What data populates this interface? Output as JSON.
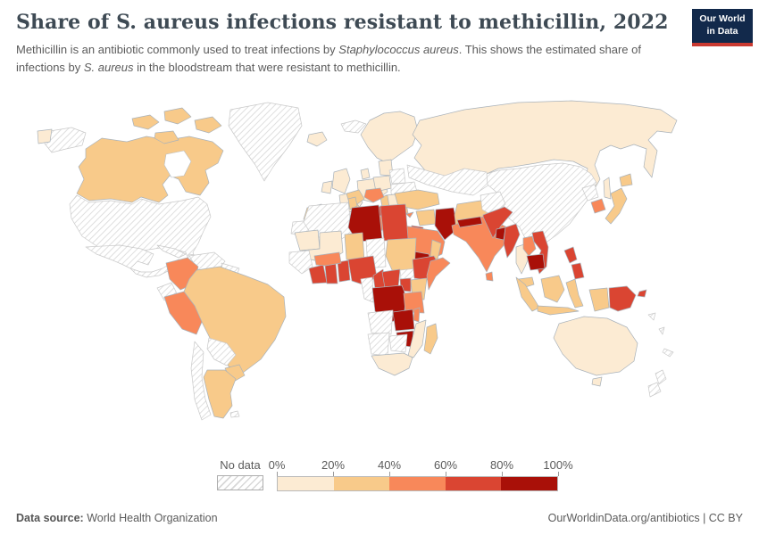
{
  "header": {
    "title": "Share of S. aureus infections resistant to methicillin, 2022",
    "subtitle_parts": [
      {
        "text": "Methicillin is an antibiotic commonly used to treat infections by ",
        "italic": false
      },
      {
        "text": "Staphylococcus aureus",
        "italic": true
      },
      {
        "text": ". This shows the estimated share of infections by ",
        "italic": false
      },
      {
        "text": "S. aureus",
        "italic": true
      },
      {
        "text": " in the bloodstream that were resistant to methicillin.",
        "italic": false
      }
    ]
  },
  "logo": {
    "line1": "Our World",
    "line2": "in Data",
    "bg_color": "#12294b",
    "accent_color": "#ca3a31"
  },
  "footer": {
    "datasource_label": "Data source:",
    "datasource_value": " World Health Organization",
    "attribution": "OurWorldinData.org/antibiotics | CC BY"
  },
  "chart_data": {
    "type": "choropleth-world-map",
    "title": "Share of S. aureus infections resistant to methicillin, 2022",
    "year": "2022",
    "unit": "%",
    "legend": {
      "position": "bottom",
      "no_data_label": "No data",
      "tick_labels": [
        "0%",
        "20%",
        "40%",
        "60%",
        "80%",
        "100%"
      ],
      "bucket_labels": [
        "0-20%",
        "20-40%",
        "40-60%",
        "60-80%",
        "80-100%"
      ],
      "bucket_colors": [
        "#fcebd3",
        "#f8ca8a",
        "#f8885a",
        "#da4532",
        "#a91008"
      ],
      "no_data_fill": "hatched"
    },
    "regions": {
      "greenland": "No data",
      "svalbard": "No data",
      "alaska": "No data",
      "usa": "No data",
      "mexico": "No data",
      "central-america": "No data",
      "cuba": "No data",
      "hispaniola": "No data",
      "venezuela": "No data",
      "guyanas": "No data",
      "ecuador": "No data",
      "bolivia": "No data",
      "chile": "No data",
      "falklands": "No data",
      "belarus": "No data",
      "ukraine": "No data",
      "kazakhstan-central-asia": "No data",
      "china-mongolia": "No data",
      "north-korea": "No data",
      "afghanistan": "No data",
      "western-sahara": "No data",
      "algeria": "No data",
      "senegal-guinea": "No data",
      "chad": "No data",
      "south-sudan": "No data",
      "gabon-congo": "No data",
      "angola": "No data",
      "namibia": "No data",
      "botswana": "No data",
      "new-zealand-north": "No data",
      "new-zealand-south": "No data",
      "solomon-islands": "No data",
      "vanuatu": "No data",
      "new-caledonia": "No data",
      "iceland": "0-20%",
      "chukotka": "0-20%",
      "russia": "0-20%",
      "sakhalin": "0-20%",
      "nordics": "0-20%",
      "united-kingdom": "0-20%",
      "ireland": "0-20%",
      "france": "0-20%",
      "iberia": "0-20%",
      "central-europe": "0-20%",
      "denmark": "0-20%",
      "poland": "0-20%",
      "baltics": "0-20%",
      "romania": "0-20%",
      "mauritania": "0-20%",
      "mali": "0-20%",
      "thailand": "0-20%",
      "australia": "0-20%",
      "tasmania": "0-20%",
      "south-africa": "0-20%",
      "mozambique": "0-20%",
      "canada": "20-40%",
      "arctic-1": "20-40%",
      "arctic-2": "20-40%",
      "arctic-3": "20-40%",
      "arctic-4": "20-40%",
      "brazil": "20-40%",
      "paraguay": "20-40%",
      "argentina": "20-40%",
      "italy": "20-40%",
      "sicily": "20-40%",
      "serbia": "20-40%",
      "bulgaria": "20-40%",
      "turkey": "20-40%",
      "syria": "20-40%",
      "iran": "20-40%",
      "oman": "20-40%",
      "morocco": "20-40%",
      "tunisia": "20-40%",
      "niger": "20-40%",
      "sudan": "20-40%",
      "kenya": "20-40%",
      "madagascar": "20-40%",
      "malaysia": "20-40%",
      "sumatra": "20-40%",
      "java": "20-40%",
      "borneo": "20-40%",
      "sulawesi": "20-40%",
      "papua-indonesia": "20-40%",
      "japan": "20-40%",
      "hokkaido": "20-40%",
      "colombia": "40-60%",
      "peru": "40-60%",
      "croatia": "40-60%",
      "greece": "40-60%",
      "cyprus": "40-60%",
      "saudi-arabia": "40-60%",
      "india": "40-60%",
      "sri-lanka": "40-60%",
      "laos": "40-60%",
      "south-korea": "40-60%",
      "burkina-faso": "40-60%",
      "somalia": "40-60%",
      "tanzania": "40-60%",
      "malawi": "40-60%",
      "albania": "60-80%",
      "jordan-levant": "60-80%",
      "pakistan": "60-80%",
      "myanmar": "60-80%",
      "vietnam": "60-80%",
      "philippines-north": "60-80%",
      "philippines-south": "60-80%",
      "papua-new-guinea": "60-80%",
      "new-britain": "60-80%",
      "cote-divoire": "60-80%",
      "ghana": "60-80%",
      "togo-benin": "60-80%",
      "nigeria": "60-80%",
      "cameroon": "60-80%",
      "central-african-republic": "60-80%",
      "ethiopia": "60-80%",
      "uganda": "60-80%",
      "egypt": "60-80%",
      "libya": "80-100%",
      "iraq": "80-100%",
      "yemen": "80-100%",
      "drc": "80-100%",
      "zambia": "80-100%",
      "zimbabwe": "80-100%",
      "nepal": "80-100%",
      "bangladesh": "80-100%",
      "cambodia": "80-100%"
    }
  }
}
